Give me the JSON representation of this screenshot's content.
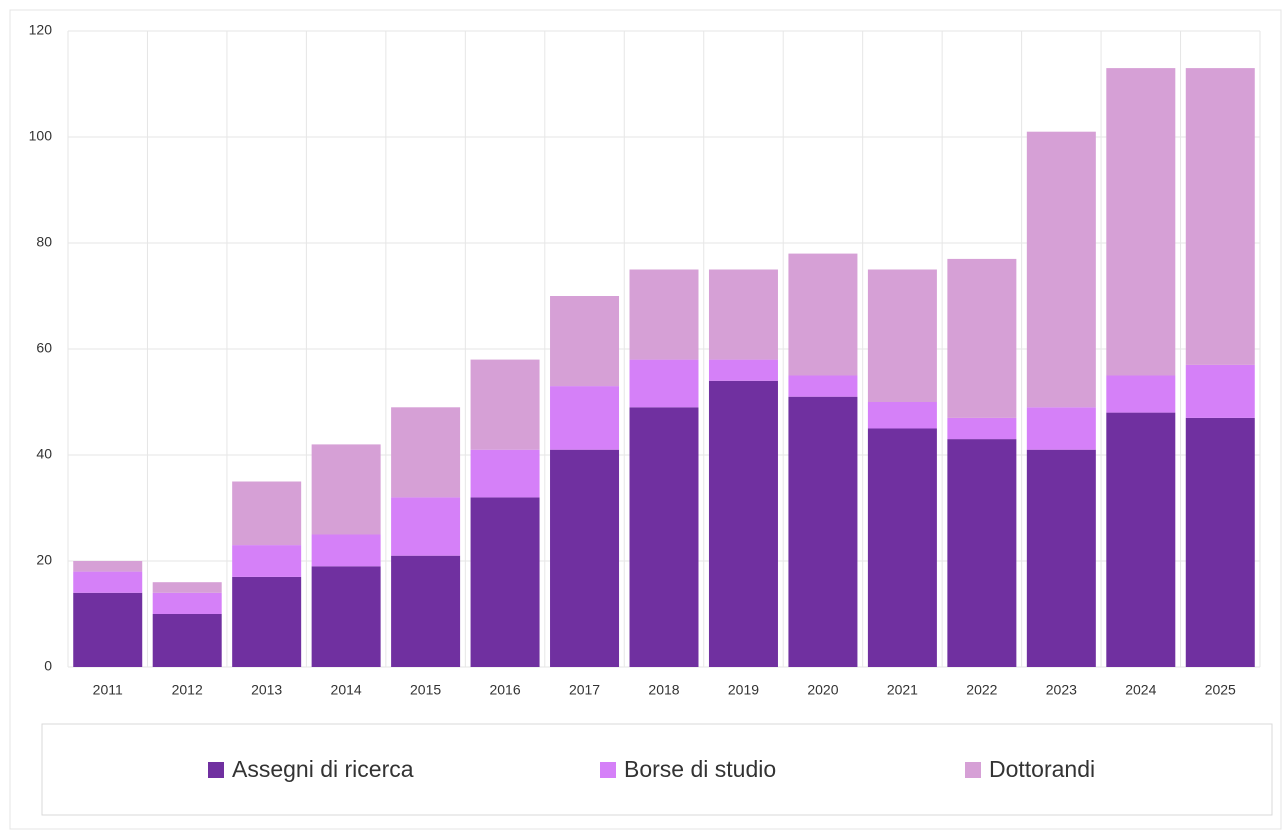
{
  "chart_data": {
    "type": "stacked_bar",
    "categories": [
      "2011",
      "2012",
      "2013",
      "2014",
      "2015",
      "2016",
      "2017",
      "2018",
      "2019",
      "2020",
      "2021",
      "2022",
      "2023",
      "2024",
      "2025"
    ],
    "series": [
      {
        "name": "Assegni di ricerca",
        "color": "#7030a0",
        "values": [
          14,
          10,
          17,
          19,
          21,
          32,
          41,
          49,
          54,
          51,
          45,
          43,
          41,
          48,
          47
        ]
      },
      {
        "name": "Borse di studio",
        "color": "#d580f8",
        "values": [
          4,
          4,
          6,
          6,
          11,
          9,
          12,
          9,
          4,
          4,
          5,
          4,
          8,
          7,
          10
        ]
      },
      {
        "name": "Dottorandi",
        "color": "#d6a0d6",
        "values": [
          2,
          2,
          12,
          17,
          17,
          17,
          17,
          17,
          17,
          23,
          25,
          30,
          52,
          58,
          56
        ]
      }
    ],
    "ylim": [
      0,
      120
    ],
    "yticks": [
      0,
      20,
      40,
      60,
      80,
      100,
      120
    ],
    "grid": true
  }
}
